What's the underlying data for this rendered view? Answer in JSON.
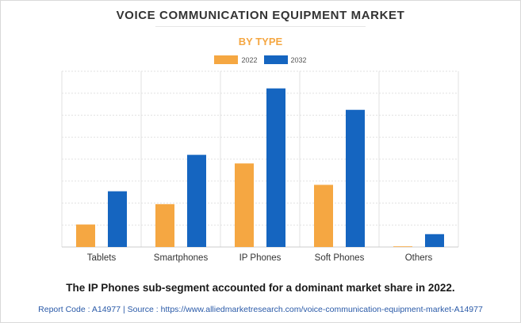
{
  "chart_data": {
    "type": "bar",
    "title": "VOICE COMMUNICATION EQUIPMENT MARKET",
    "subtitle": "BY TYPE",
    "categories": [
      "Tablets",
      "Smartphones",
      "IP Phones",
      "Soft Phones",
      "Others"
    ],
    "series": [
      {
        "name": "2022",
        "color": "#f5a742",
        "values": [
          1.05,
          2.0,
          3.9,
          2.9,
          0.03
        ]
      },
      {
        "name": "2032",
        "color": "#1565c0",
        "values": [
          2.6,
          4.3,
          7.4,
          6.4,
          0.6
        ]
      }
    ],
    "ylim": [
      0,
      8.2
    ],
    "y_tick_labels_shown": false,
    "grid": "horizontal and vertical",
    "legend_position": "top-center"
  },
  "caption": "The IP Phones sub-segment accounted for a dominant market share in 2022.",
  "footer": "Report Code : A14977  |  Source : https://www.alliedmarketresearch.com/voice-communication-equipment-market-A14977"
}
